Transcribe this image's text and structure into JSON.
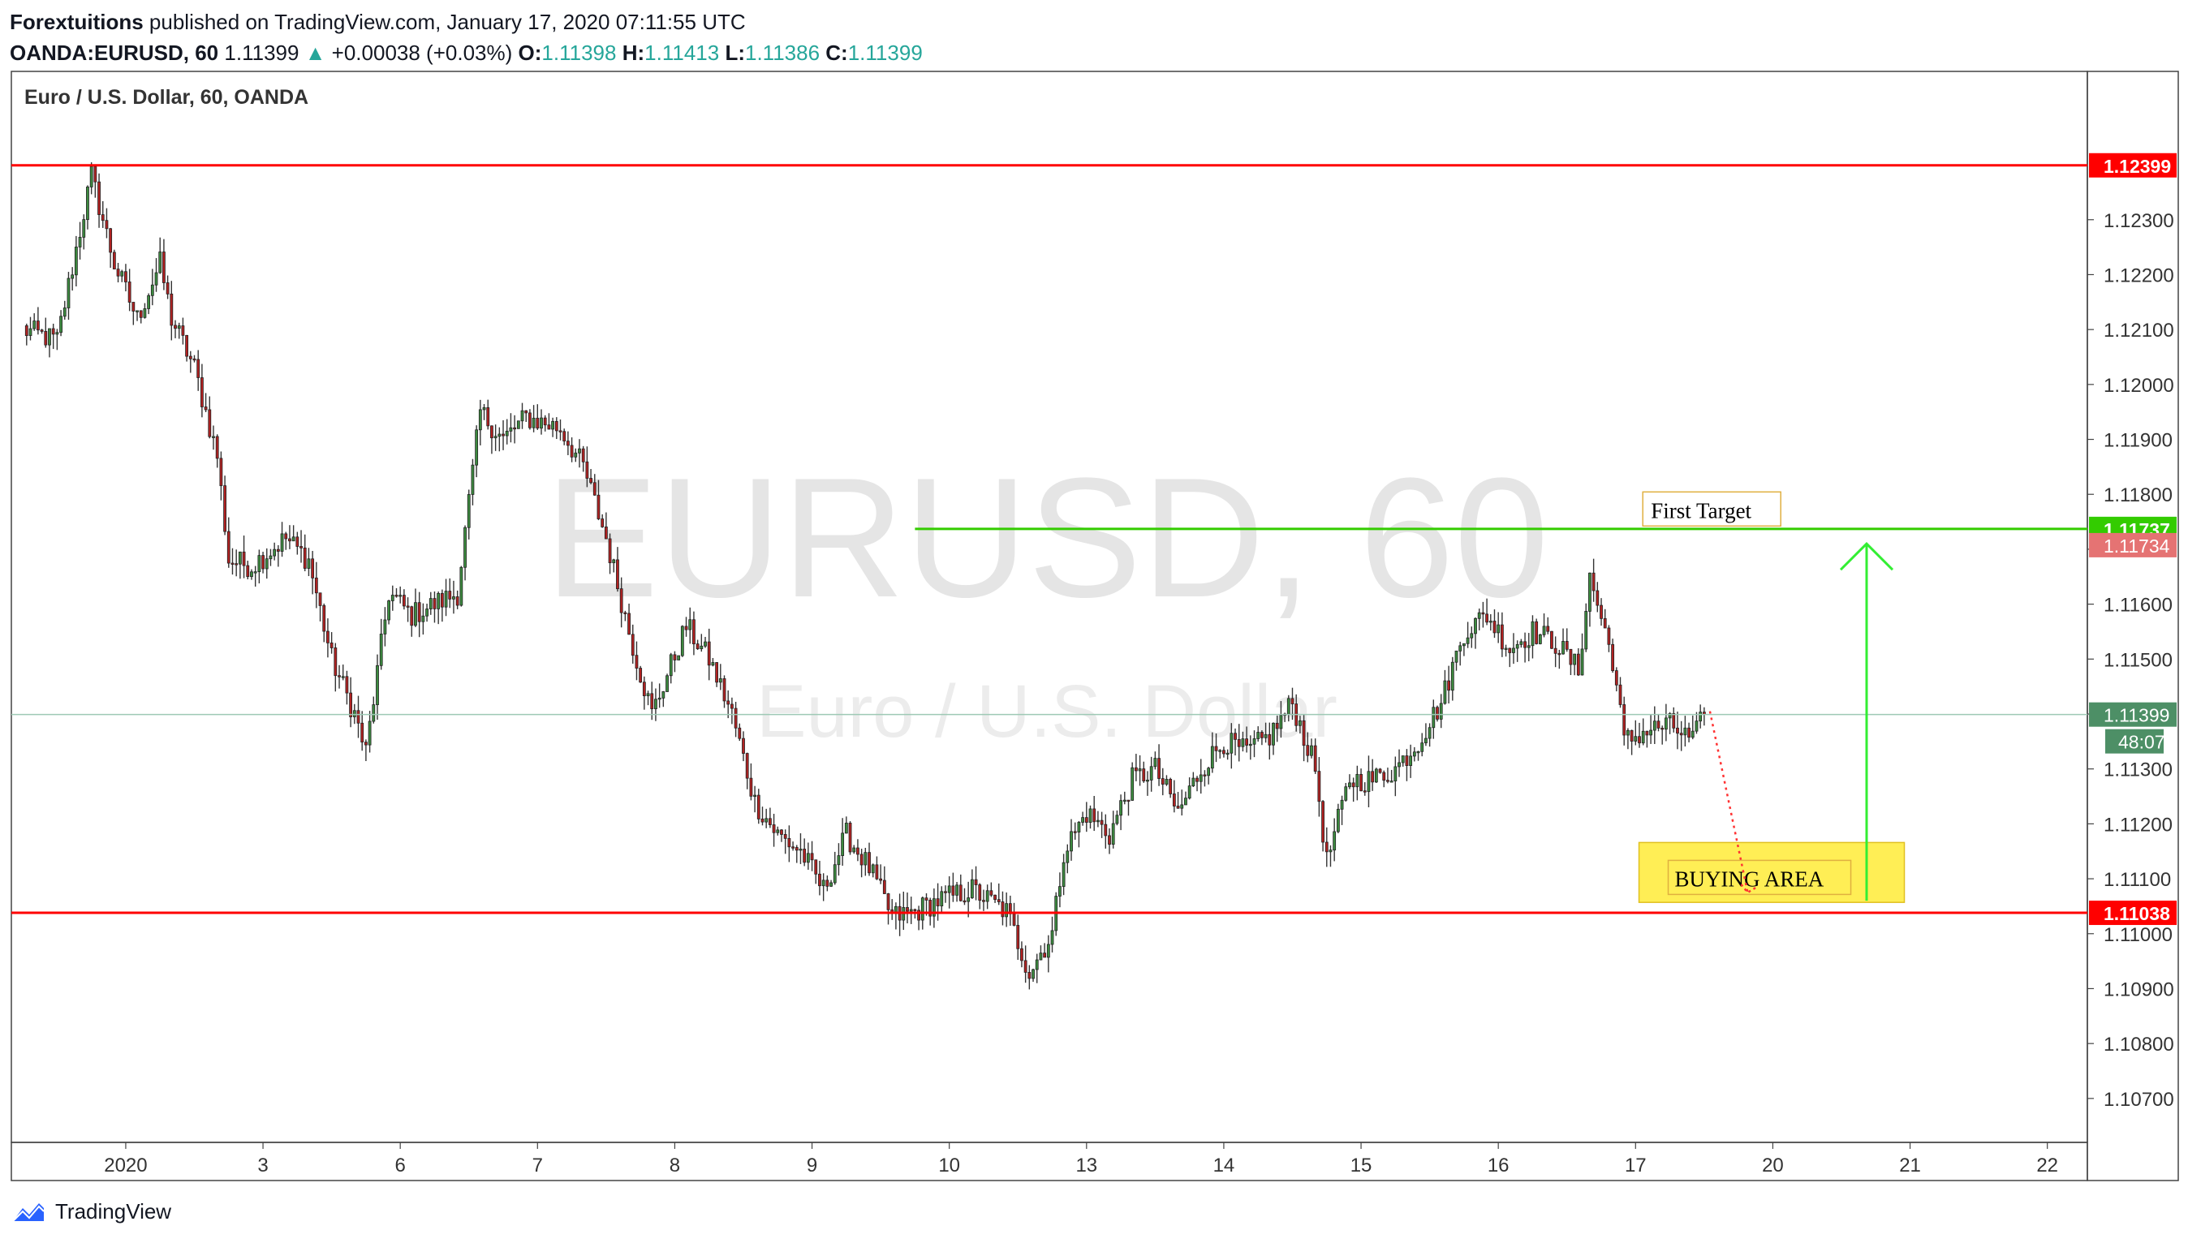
{
  "header": {
    "author": "Forextuitions",
    "published_text": "published on TradingView.com, January 17, 2020 07:11:55 UTC",
    "symbol": "OANDA:EURUSD, 60",
    "last": "1.11399",
    "change_arrow": "▲",
    "change": "+0.00038 (+0.03%)",
    "o_label": "O:",
    "o": "1.11398",
    "h_label": "H:",
    "h": "1.11413",
    "l_label": "L:",
    "l": "1.11386",
    "c_label": "C:",
    "c": "1.11399"
  },
  "footer": {
    "brand": "TradingView",
    "logo_icon": "tradingview-logo-icon"
  },
  "chart_data": {
    "type": "candlestick",
    "pane_title": "Euro / U.S. Dollar, 60, OANDA",
    "watermark_main": "EURUSD, 60",
    "watermark_sub": "Euro / U.S. Dollar",
    "ylim": [
      1.1062,
      1.1257
    ],
    "y_ticks": [
      "1.10700",
      "1.10800",
      "1.10900",
      "1.11000",
      "1.11100",
      "1.11200",
      "1.11300",
      "1.11400",
      "1.11500",
      "1.11600",
      "1.11700",
      "1.11800",
      "1.11900",
      "1.12000",
      "1.12100",
      "1.12200",
      "1.12300"
    ],
    "x_ticks": [
      {
        "label": "2020",
        "x": 9
      },
      {
        "label": "3",
        "x": 21
      },
      {
        "label": "6",
        "x": 33
      },
      {
        "label": "7",
        "x": 45
      },
      {
        "label": "8",
        "x": 57
      },
      {
        "label": "9",
        "x": 69
      },
      {
        "label": "10",
        "x": 81
      },
      {
        "label": "13",
        "x": 93
      },
      {
        "label": "14",
        "x": 105
      },
      {
        "label": "15",
        "x": 117
      },
      {
        "label": "16",
        "x": 129
      },
      {
        "label": "17",
        "x": 141
      },
      {
        "label": "20",
        "x": 153
      },
      {
        "label": "21",
        "x": 165
      },
      {
        "label": "22",
        "x": 177
      }
    ],
    "x_range": [
      -1,
      180.5
    ],
    "price_colors": {
      "up": "#26a69a",
      "down": "#ef5350",
      "bull_body": "#3d8c40",
      "bear_body": "#b22222"
    },
    "horizontal_lines": [
      {
        "price": 1.12399,
        "label": "1.12399",
        "color": "#ff0000",
        "x_from": -1
      },
      {
        "price": 1.11038,
        "label": "1.11038",
        "color": "#ff0000",
        "x_from": -1
      },
      {
        "price": 1.11737,
        "label": "1.11737",
        "color": "#33cc00",
        "x_from": 78
      }
    ],
    "current_price": {
      "price": 1.11399,
      "label": "1.11399",
      "countdown": "48:07",
      "color": "#4d8f66"
    },
    "extra_price_label": {
      "price": 1.11734,
      "label": "1.11734",
      "color": "#e57373"
    },
    "annotations": [
      {
        "text": "First Target",
        "kind": "label-box",
        "x": 142.2,
        "price": 1.1176
      },
      {
        "text": "BUYING AREA",
        "kind": "highlight-box",
        "x_from": 141.3,
        "x_to": 164.5,
        "price_top": 1.11166,
        "price_bottom": 1.11057
      }
    ],
    "target_arrow": {
      "x": 161.2,
      "from_price": 1.1106,
      "to_price": 1.1171,
      "color": "#33ee33"
    },
    "dotted_path": {
      "from": {
        "x": 147.5,
        "price": 1.11405
      },
      "to": {
        "x": 150.8,
        "price": 1.11075
      },
      "color": "#ff3333"
    },
    "waypoints": [
      [
        0,
        1.121
      ],
      [
        3,
        1.1208
      ],
      [
        5,
        1.1228
      ],
      [
        6,
        1.1238
      ],
      [
        8,
        1.1222
      ],
      [
        10,
        1.1212
      ],
      [
        12,
        1.1222
      ],
      [
        13,
        1.1212
      ],
      [
        15,
        1.1203
      ],
      [
        17,
        1.1187
      ],
      [
        18,
        1.1168
      ],
      [
        20,
        1.1167
      ],
      [
        23,
        1.1172
      ],
      [
        25,
        1.1168
      ],
      [
        27,
        1.115
      ],
      [
        29,
        1.114
      ],
      [
        30,
        1.1133
      ],
      [
        32,
        1.1162
      ],
      [
        34,
        1.1158
      ],
      [
        38,
        1.1162
      ],
      [
        40,
        1.1195
      ],
      [
        42,
        1.119
      ],
      [
        44,
        1.1194
      ],
      [
        47,
        1.1192
      ],
      [
        49,
        1.1185
      ],
      [
        51,
        1.1172
      ],
      [
        53,
        1.1155
      ],
      [
        55,
        1.114
      ],
      [
        58,
        1.1156
      ],
      [
        60,
        1.115
      ],
      [
        62,
        1.114
      ],
      [
        64,
        1.1124
      ],
      [
        66,
        1.1118
      ],
      [
        68,
        1.1115
      ],
      [
        70,
        1.1108
      ],
      [
        72,
        1.1118
      ],
      [
        74,
        1.1112
      ],
      [
        76,
        1.1103
      ],
      [
        78,
        1.1104
      ],
      [
        80,
        1.1106
      ],
      [
        83,
        1.1108
      ],
      [
        86,
        1.1104
      ],
      [
        88,
        1.1093
      ],
      [
        90,
        1.11
      ],
      [
        91,
        1.1115
      ],
      [
        93,
        1.1122
      ],
      [
        95,
        1.1118
      ],
      [
        97,
        1.1128
      ],
      [
        99,
        1.113
      ],
      [
        101,
        1.1122
      ],
      [
        103,
        1.113
      ],
      [
        105,
        1.1135
      ],
      [
        107,
        1.1133
      ],
      [
        109,
        1.1136
      ],
      [
        111,
        1.1142
      ],
      [
        113,
        1.113
      ],
      [
        114,
        1.1113
      ],
      [
        116,
        1.1128
      ],
      [
        118,
        1.1128
      ],
      [
        120,
        1.113
      ],
      [
        122,
        1.1135
      ],
      [
        124,
        1.1142
      ],
      [
        126,
        1.1155
      ],
      [
        128,
        1.1158
      ],
      [
        130,
        1.1152
      ],
      [
        132,
        1.1155
      ],
      [
        134,
        1.1153
      ],
      [
        136,
        1.1148
      ],
      [
        137,
        1.1165
      ],
      [
        139,
        1.115
      ],
      [
        140,
        1.1135
      ],
      [
        142,
        1.1137
      ],
      [
        144,
        1.1138
      ],
      [
        146,
        1.1135
      ],
      [
        147,
        1.11399
      ]
    ]
  }
}
